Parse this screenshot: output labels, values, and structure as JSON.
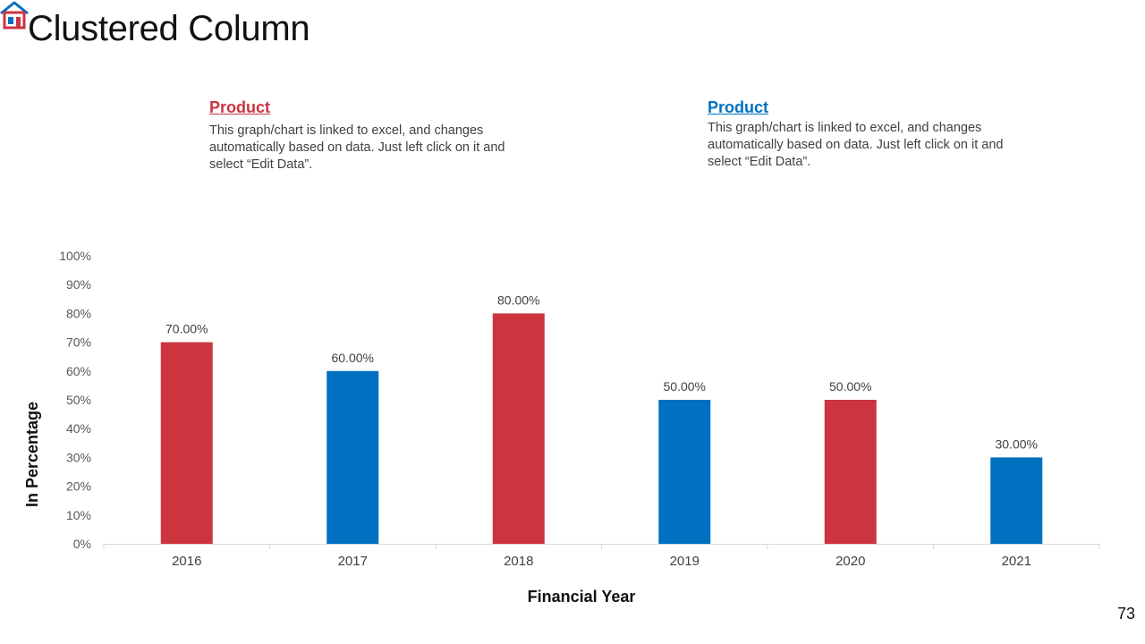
{
  "slide": {
    "title": "Clustered Column",
    "page_number": "73"
  },
  "legend": [
    {
      "heading": "Product",
      "text": "This graph/chart is linked to excel, and changes automatically based on data. Just left click on it and select “Edit Data”.",
      "color": "#CC3440"
    },
    {
      "heading": "Product",
      "text": "This graph/chart is linked to excel, and changes automatically based on data. Just left click on it and select “Edit Data”.",
      "color": "#0070C0"
    }
  ],
  "chart_data": {
    "type": "bar",
    "title": "",
    "xlabel": "Financial Year",
    "ylabel": "In Percentage",
    "categories": [
      "2016",
      "2017",
      "2018",
      "2019",
      "2020",
      "2021"
    ],
    "values": [
      70,
      60,
      80,
      50,
      50,
      30
    ],
    "value_labels": [
      "70.00%",
      "60.00%",
      "80.00%",
      "50.00%",
      "50.00%",
      "30.00%"
    ],
    "bar_colors": [
      "#CC3440",
      "#0070C0",
      "#CC3440",
      "#0070C0",
      "#CC3440",
      "#0070C0"
    ],
    "ylim": [
      0,
      100
    ],
    "yticks": [
      0,
      10,
      20,
      30,
      40,
      50,
      60,
      70,
      80,
      90,
      100
    ],
    "ytick_labels": [
      "0%",
      "10%",
      "20%",
      "30%",
      "40%",
      "50%",
      "60%",
      "70%",
      "80%",
      "90%",
      "100%"
    ],
    "grid": false,
    "legend": "none"
  }
}
